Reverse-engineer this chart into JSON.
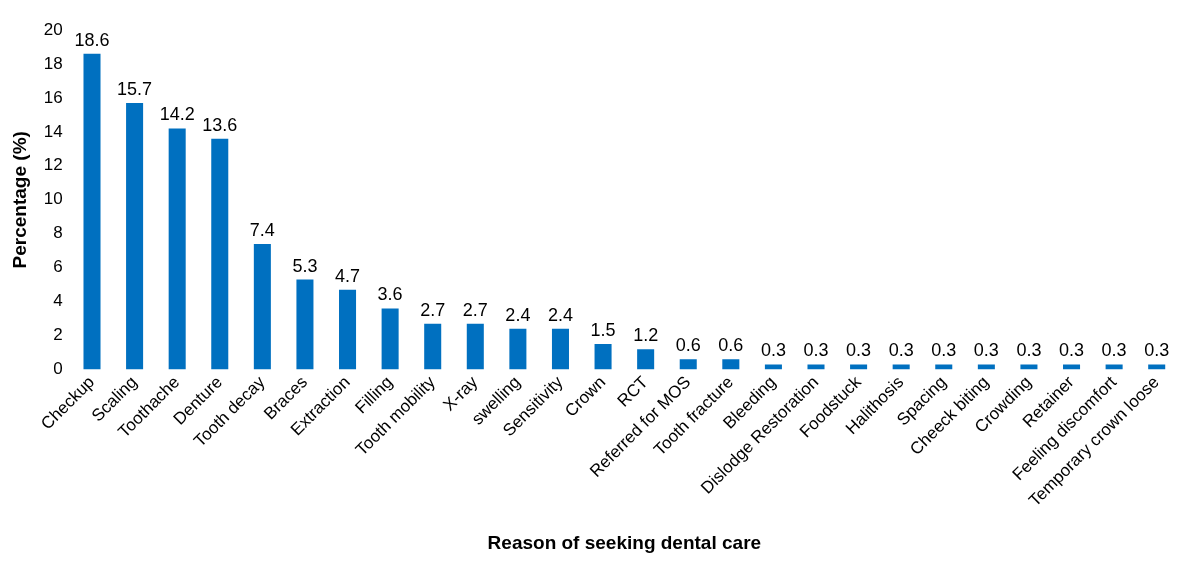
{
  "chart_data": {
    "type": "bar",
    "xlabel": "Reason of seeking dental care",
    "ylabel": "Percentage (%)",
    "categories": [
      "Checkup",
      "Scaling",
      "Toothache",
      "Denture",
      "Tooth decay",
      "Braces",
      "Extraction",
      "Filling",
      "Tooth mobility",
      "X-ray",
      "swelling",
      "Sensitivity",
      "Crown",
      "RCT",
      "Referred for MOS",
      "Tooth fracture",
      "Bleeding",
      "Dislodge Restoration",
      "Foodstuck",
      "Halithosis",
      "Spacing",
      "Cheeck biting",
      "Crowding",
      "Retainer",
      "Feeling discomfort",
      "Temporary crown loose"
    ],
    "values": [
      18.6,
      15.7,
      14.2,
      13.6,
      7.4,
      5.3,
      4.7,
      3.6,
      2.7,
      2.7,
      2.4,
      2.4,
      1.5,
      1.2,
      0.6,
      0.6,
      0.3,
      0.3,
      0.3,
      0.3,
      0.3,
      0.3,
      0.3,
      0.3,
      0.3,
      0.3
    ],
    "color": "#0070c0",
    "ylim": [
      0,
      20
    ],
    "yticks": [
      0,
      2,
      4,
      6,
      8,
      10,
      12,
      14,
      16,
      18,
      20
    ],
    "grid": false,
    "legend": false,
    "data_labels": true
  }
}
